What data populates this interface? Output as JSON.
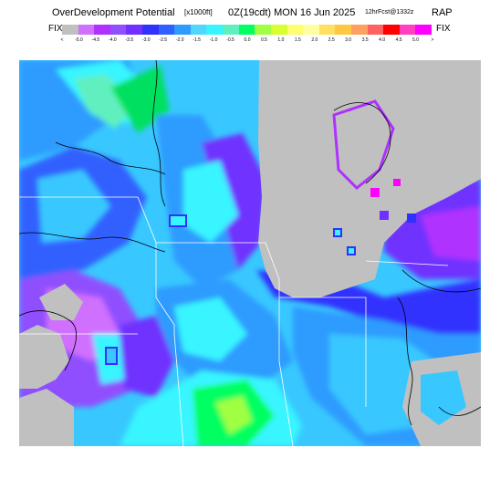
{
  "header": {
    "title": "OverDevelopment Potential",
    "units": "[x1000ft]",
    "valid_time": "0Z(19cdt) MON 16 Jun 2025",
    "forecast": "12hrFcst@1332z",
    "model": "RAP"
  },
  "legend": {
    "left_label": "FIX",
    "right_label": "FIX",
    "colors": [
      "#c0c0c0",
      "#d070ff",
      "#b030ff",
      "#9050ff",
      "#7030ff",
      "#3030ff",
      "#3060ff",
      "#2f9bff",
      "#50d7ff",
      "#38f5ff",
      "#60f0c0",
      "#00ff60",
      "#a0ff40",
      "#d8ff30",
      "#ffff70",
      "#ffffa0",
      "#ffe060",
      "#ffc840",
      "#ffa060",
      "#ff6060",
      "#ff0000",
      "#ff40c0",
      "#ff00ff"
    ],
    "ticks": [
      "<",
      "-5.0",
      "-4.5",
      "-4.0",
      "-3.5",
      "-3.0",
      "-2.5",
      "-2.0",
      "-1.5",
      "-1.0",
      "-0.5",
      "0.0",
      "0.5",
      "1.0",
      "1.5",
      "2.0",
      "2.5",
      "3.0",
      "3.5",
      "4.0",
      "4.5",
      "5.0",
      ">"
    ]
  },
  "map": {
    "background": "#c0c0c0",
    "lake_color": "#c0c0c0"
  }
}
